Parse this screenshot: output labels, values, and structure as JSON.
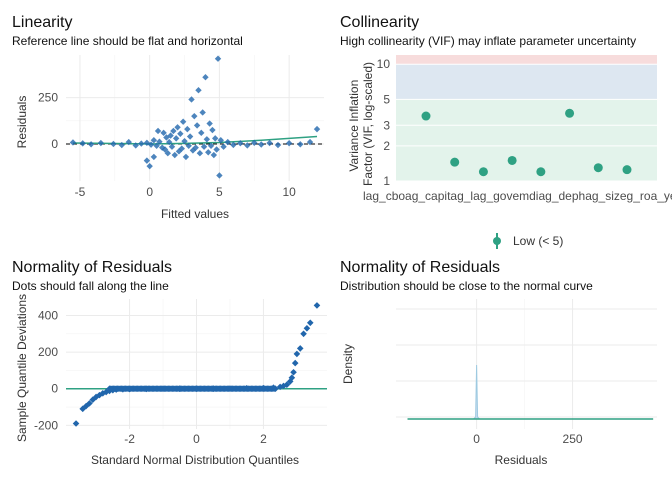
{
  "chart_data": [
    {
      "type": "scatter",
      "title": "Linearity",
      "subtitle": "Reference line should be flat and horizontal",
      "xlabel": "Fitted values",
      "ylabel": "Residuals",
      "xlim": [
        -6,
        12.5
      ],
      "ylim": [
        -200,
        480
      ],
      "xticks": [
        -5,
        0,
        5,
        10
      ],
      "yticks": [
        0,
        250
      ],
      "grid": true,
      "reference_line_y": 0,
      "points": [
        [
          -5.5,
          8
        ],
        [
          -4.8,
          3
        ],
        [
          -4.2,
          -2
        ],
        [
          -3.5,
          5
        ],
        [
          -2.6,
          0
        ],
        [
          -2.0,
          -6
        ],
        [
          -1.5,
          10
        ],
        [
          -1.0,
          -8
        ],
        [
          -0.6,
          2
        ],
        [
          -0.2,
          6
        ],
        [
          0.1,
          -4
        ],
        [
          0.3,
          20
        ],
        [
          0.5,
          -10
        ],
        [
          0.7,
          12
        ],
        [
          0.9,
          -20
        ],
        [
          1.0,
          60
        ],
        [
          1.1,
          -30
        ],
        [
          1.2,
          35
        ],
        [
          1.3,
          -50
        ],
        [
          1.4,
          10
        ],
        [
          1.5,
          45
        ],
        [
          1.6,
          -15
        ],
        [
          1.7,
          70
        ],
        [
          1.8,
          -60
        ],
        [
          1.9,
          30
        ],
        [
          2.0,
          90
        ],
        [
          2.1,
          -40
        ],
        [
          2.2,
          55
        ],
        [
          2.3,
          -25
        ],
        [
          2.4,
          120
        ],
        [
          2.5,
          15
        ],
        [
          2.6,
          -70
        ],
        [
          2.7,
          80
        ],
        [
          2.8,
          -10
        ],
        [
          2.9,
          40
        ],
        [
          3.0,
          240
        ],
        [
          3.1,
          -35
        ],
        [
          3.2,
          150
        ],
        [
          3.3,
          -20
        ],
        [
          3.4,
          100
        ],
        [
          3.5,
          290
        ],
        [
          3.6,
          -50
        ],
        [
          3.7,
          60
        ],
        [
          3.8,
          170
        ],
        [
          3.9,
          -15
        ],
        [
          4.0,
          360
        ],
        [
          4.1,
          25
        ],
        [
          4.2,
          -45
        ],
        [
          4.3,
          110
        ],
        [
          4.4,
          -10
        ],
        [
          4.5,
          75
        ],
        [
          4.6,
          -60
        ],
        [
          4.7,
          30
        ],
        [
          4.8,
          -30
        ],
        [
          4.9,
          460
        ],
        [
          5.0,
          -170
        ],
        [
          5.1,
          20
        ],
        [
          5.3,
          -15
        ],
        [
          5.6,
          10
        ],
        [
          6.0,
          -5
        ],
        [
          6.5,
          4
        ],
        [
          7.0,
          -8
        ],
        [
          7.5,
          6
        ],
        [
          8.0,
          -3
        ],
        [
          8.6,
          5
        ],
        [
          9.2,
          -6
        ],
        [
          10.0,
          4
        ],
        [
          10.8,
          -2
        ],
        [
          11.5,
          10
        ],
        [
          12.0,
          80
        ],
        [
          0.0,
          -120
        ],
        [
          0.3,
          -70
        ],
        [
          0.6,
          70
        ],
        [
          -0.2,
          -90
        ]
      ],
      "smooth_line": [
        [
          -5.5,
          5
        ],
        [
          0,
          0
        ],
        [
          2.5,
          3
        ],
        [
          5,
          8
        ],
        [
          8,
          20
        ],
        [
          12,
          40
        ]
      ]
    },
    {
      "type": "line",
      "title": "Collinearity",
      "subtitle": "High collinearity (VIF) may inflate parameter uncertainty",
      "xlabel": "",
      "ylabel": "Variance Inflation\nFactor (VIF, log-scaled)",
      "categories": [
        "lag_cbo",
        "lag_cap_ratio",
        "lag_roe",
        "lag_gov_credit",
        "lag_deposit",
        "lag_size",
        "lag_roa",
        "year"
      ],
      "category_tick_text": "lag_cboag_capitag_lag_govemdiag_dephag_sizeg_roa_year",
      "values": [
        3.6,
        1.45,
        1.2,
        1.5,
        1.2,
        3.8,
        1.3,
        1.25
      ],
      "ylim": [
        1,
        12
      ],
      "yscale": "log",
      "yticks": [
        1,
        2,
        3,
        5,
        10
      ],
      "bands": [
        {
          "from": 1,
          "to": 5,
          "color": "#e3f3eb"
        },
        {
          "from": 5,
          "to": 10,
          "color": "#dde7f1"
        },
        {
          "from": 10,
          "to": 12,
          "color": "#f7dcdc"
        }
      ],
      "legend": {
        "label": "Low (< 5)",
        "placement": "bottom"
      },
      "color": "#2fa183"
    },
    {
      "type": "scatter",
      "title": "Normality of Residuals",
      "subtitle": "Dots should fall along the line",
      "xlabel": "Standard Normal Distribution Quantiles",
      "ylabel": "Sample Quantile Deviations",
      "xlim": [
        -3.9,
        3.9
      ],
      "ylim": [
        -220,
        490
      ],
      "xticks": [
        -2,
        0,
        2
      ],
      "yticks": [
        -200,
        0,
        200,
        400
      ],
      "grid": true,
      "reference_line_y": 0,
      "qq_points": [
        [
          -3.6,
          -190
        ],
        [
          -3.4,
          -110
        ],
        [
          -3.3,
          -95
        ],
        [
          -3.2,
          -80
        ],
        [
          -3.1,
          -60
        ],
        [
          -3.0,
          -45
        ],
        [
          -2.9,
          -35
        ],
        [
          -2.8,
          -25
        ],
        [
          -2.7,
          -18
        ],
        [
          -2.6,
          -12
        ],
        [
          -2.5,
          -8
        ],
        [
          -2.4,
          -5
        ],
        [
          -2.2,
          -3
        ],
        [
          -2.0,
          -2
        ],
        [
          -1.5,
          -1
        ],
        [
          -1.0,
          0
        ],
        [
          -0.5,
          0
        ],
        [
          0,
          0
        ],
        [
          0.5,
          0
        ],
        [
          1.0,
          1
        ],
        [
          1.5,
          2
        ],
        [
          2.0,
          3
        ],
        [
          2.3,
          6
        ],
        [
          2.5,
          10
        ],
        [
          2.6,
          15
        ],
        [
          2.7,
          22
        ],
        [
          2.8,
          40
        ],
        [
          2.85,
          60
        ],
        [
          2.9,
          90
        ],
        [
          2.95,
          140
        ],
        [
          3.0,
          190
        ],
        [
          3.1,
          220
        ],
        [
          3.2,
          300
        ],
        [
          3.3,
          330
        ],
        [
          3.4,
          360
        ],
        [
          3.6,
          455
        ]
      ]
    },
    {
      "type": "area",
      "title": "Normality of Residuals",
      "subtitle": "Distribution should be close to the normal curve",
      "xlabel": "Residuals",
      "ylabel": "Density",
      "xlim": [
        -210,
        470
      ],
      "xticks": [
        0,
        250
      ],
      "grid": true
    }
  ],
  "colors": {
    "point": "#2166ac",
    "accent": "#2fa183",
    "reference": "#000000",
    "grid": "#ebebeb",
    "panel_border": "#d9d9d9"
  }
}
